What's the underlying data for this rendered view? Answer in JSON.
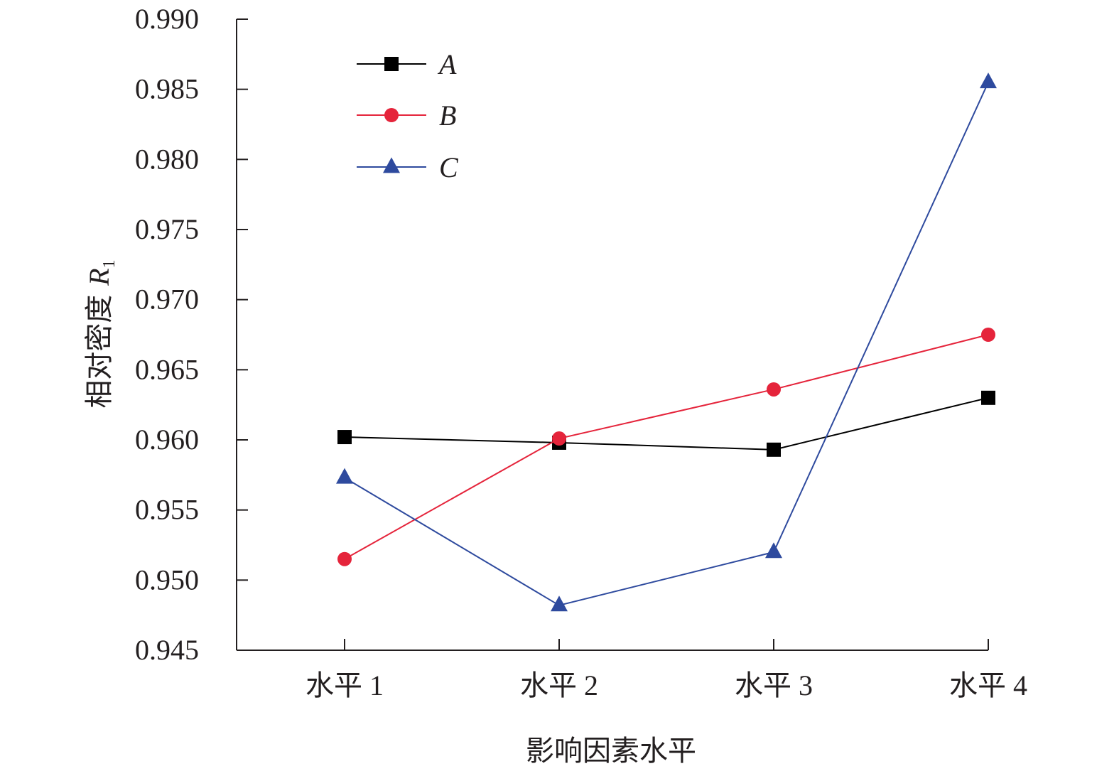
{
  "chart_data": {
    "type": "line",
    "categories": [
      "水平 1",
      "水平 2",
      "水平 3",
      "水平 4"
    ],
    "series": [
      {
        "name": "A",
        "values": [
          0.9602,
          0.9598,
          0.9593,
          0.963
        ],
        "color": "#000000",
        "marker": "square"
      },
      {
        "name": "B",
        "values": [
          0.9515,
          0.9601,
          0.9636,
          0.9675
        ],
        "color": "#e5243b",
        "marker": "circle"
      },
      {
        "name": "C",
        "values": [
          0.9573,
          0.9482,
          0.952,
          0.9855
        ],
        "color": "#2e4a9e",
        "marker": "triangle"
      }
    ],
    "xlabel": "影响因素水平",
    "ylabel": {
      "main": "相对密度 ",
      "var": "R",
      "sub": "1"
    },
    "ylim": [
      0.945,
      0.99
    ],
    "yticks": [
      "0.945",
      "0.950",
      "0.955",
      "0.960",
      "0.965",
      "0.970",
      "0.975",
      "0.980",
      "0.985",
      "0.990"
    ],
    "legend_position": "top-left",
    "grid": false
  }
}
